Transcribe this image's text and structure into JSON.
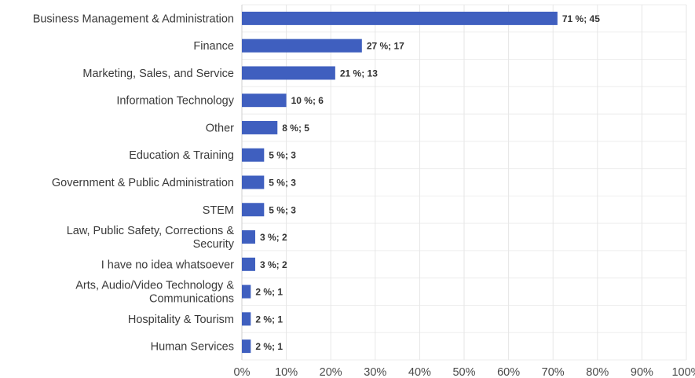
{
  "chart_data": {
    "type": "bar",
    "orientation": "horizontal",
    "categories": [
      [
        "Business Management & Administration"
      ],
      [
        "Finance"
      ],
      [
        "Marketing, Sales, and Service"
      ],
      [
        "Information Technology"
      ],
      [
        "Other"
      ],
      [
        "Education & Training"
      ],
      [
        "Government & Public Administration"
      ],
      [
        "STEM"
      ],
      [
        "Law, Public Safety, Corrections &",
        "Security"
      ],
      [
        "I have no idea whatsoever"
      ],
      [
        "Arts, Audio/Video Technology &",
        "Communications"
      ],
      [
        "Hospitality & Tourism"
      ],
      [
        "Human Services"
      ]
    ],
    "values": [
      71,
      27,
      21,
      10,
      8,
      5,
      5,
      5,
      3,
      3,
      2,
      2,
      2
    ],
    "counts": [
      45,
      17,
      13,
      6,
      5,
      3,
      3,
      3,
      2,
      2,
      1,
      1,
      1
    ],
    "data_labels": [
      "71 %; 45",
      "27 %; 17",
      "21 %; 13",
      "10 %; 6",
      "8 %; 5",
      "5 %; 3",
      "5 %; 3",
      "5 %; 3",
      "3 %; 2",
      "3 %; 2",
      "2 %; 1",
      "2 %; 1",
      "2 %; 1"
    ],
    "x_ticks": [
      "0%",
      "10%",
      "20%",
      "30%",
      "40%",
      "50%",
      "60%",
      "70%",
      "80%",
      "90%",
      "100%"
    ],
    "xlim": [
      0,
      100
    ],
    "grid": true,
    "bar_color": "#3f5fbf"
  }
}
